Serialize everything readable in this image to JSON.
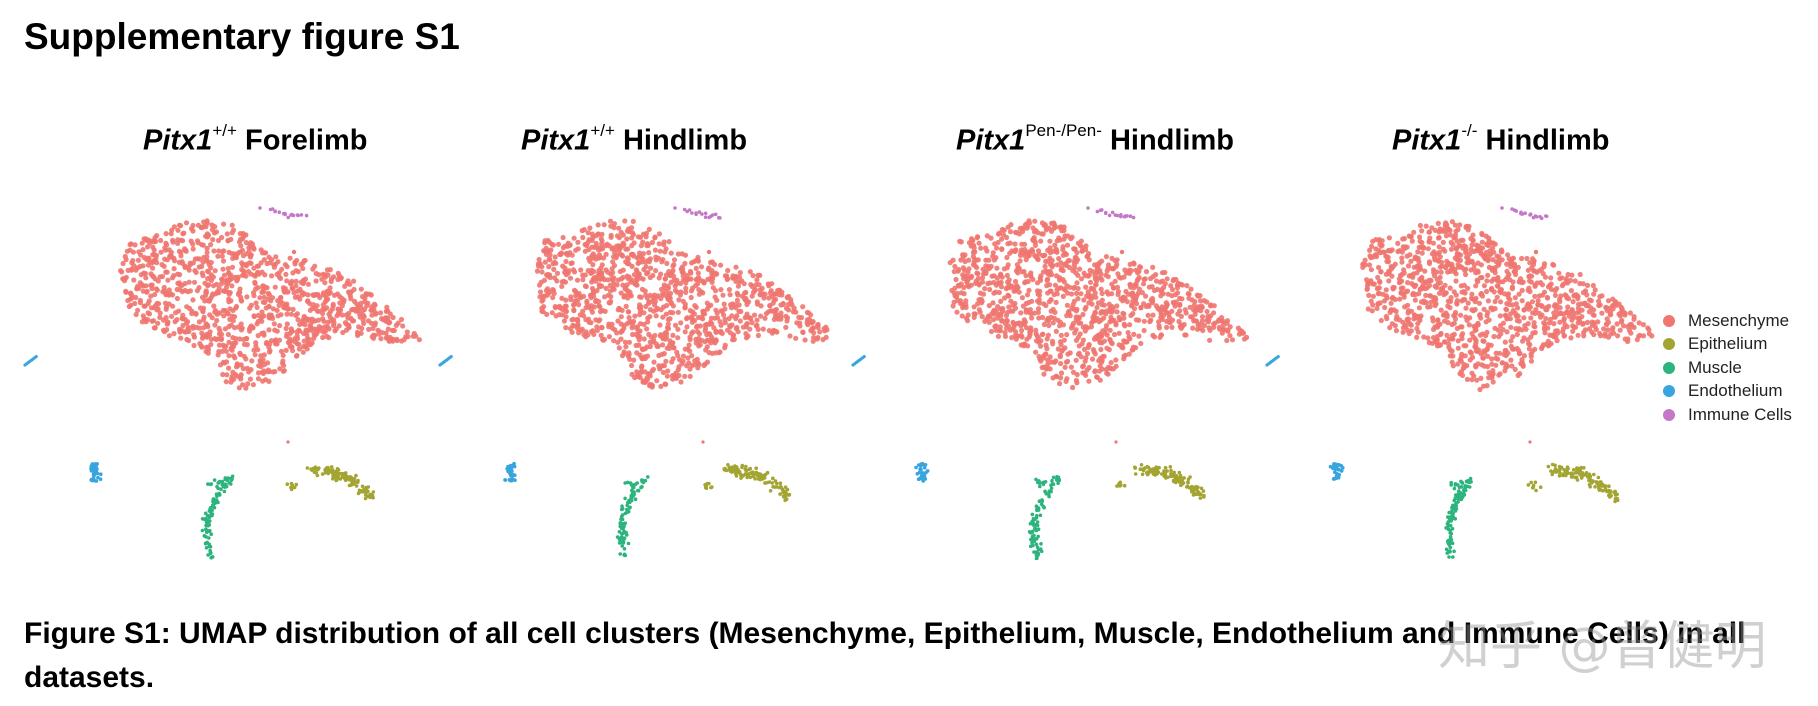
{
  "supplementary_title": "Supplementary figure S1",
  "panels": [
    {
      "gene": "Pitx1",
      "genotype": "+/+",
      "tissue": "Forelimb"
    },
    {
      "gene": "Pitx1",
      "genotype": "+/+",
      "tissue": "Hindlimb"
    },
    {
      "gene": "Pitx1",
      "genotype": "Pen-/Pen-",
      "tissue": "Hindlimb"
    },
    {
      "gene": "Pitx1",
      "genotype": "-/-",
      "tissue": "Hindlimb"
    }
  ],
  "legend": [
    {
      "label": "Mesenchyme",
      "color": "#F07670"
    },
    {
      "label": "Epithelium",
      "color": "#A3A533"
    },
    {
      "label": "Muscle",
      "color": "#2DB47E"
    },
    {
      "label": "Endothelium",
      "color": "#38A5DE"
    },
    {
      "label": "Immune Cells",
      "color": "#C479C8"
    }
  ],
  "caption": "Figure S1: UMAP distribution of all cell clusters (Mesenchyme, Epithelium, Muscle, Endothelium and Immune Cells) in all datasets.",
  "watermark": "知乎 @曾健明"
}
